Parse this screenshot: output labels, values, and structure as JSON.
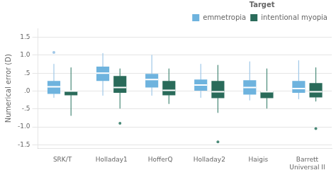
{
  "chart_data": {
    "type": "box",
    "categories": [
      "SRK/T",
      "Holladay1",
      "HofferQ",
      "Holladay2",
      "Haigis",
      "Barrett\nUniversal II"
    ],
    "y_label": "Numerical error (D)",
    "ylim": [
      -1.6,
      1.75
    ],
    "yticks": [
      -1.5,
      {
        "value": -1.0,
        "label": "-1.0"
      },
      {
        "value": -0.5,
        "label": "-.5"
      },
      {
        "value": 0.0,
        "label": ".0"
      },
      {
        "value": 0.5,
        "label": ".5"
      },
      {
        "value": 1.0,
        "label": "1.0"
      },
      1.5
    ],
    "grid": true,
    "legend": "upper right",
    "legend_title": "Target",
    "series": [
      {
        "name": "emmetropia",
        "color": "#6eb3de",
        "whisker_color": "#a0c8e8",
        "whisker_low": [
          -0.18,
          -0.12,
          -0.12,
          -0.18,
          -0.25,
          -0.22
        ],
        "whisker_high": [
          0.75,
          1.05,
          1.0,
          0.75,
          0.82,
          0.85
        ],
        "q1": [
          -0.08,
          0.28,
          0.1,
          0.0,
          -0.1,
          -0.05
        ],
        "median": [
          0.12,
          0.5,
          0.32,
          0.17,
          0.1,
          0.07
        ],
        "q3": [
          0.28,
          0.68,
          0.48,
          0.32,
          0.3,
          0.28
        ],
        "fliers_high": [
          1.08,
          null,
          null,
          null,
          null,
          null
        ],
        "fliers_low": [
          null,
          null,
          null,
          null,
          null,
          null
        ]
      },
      {
        "name": "intentional myopia",
        "color": "#2a6b5a",
        "whisker_color": "#4a8a78",
        "whisker_low": [
          -0.68,
          -0.48,
          -0.35,
          -0.6,
          -0.48,
          -0.28
        ],
        "whisker_high": [
          0.65,
          0.62,
          0.62,
          0.72,
          0.62,
          0.65
        ],
        "q1": [
          -0.12,
          -0.05,
          -0.12,
          -0.2,
          -0.2,
          -0.18
        ],
        "median": [
          0.0,
          0.1,
          0.02,
          -0.02,
          -0.02,
          -0.02
        ],
        "q3": [
          0.0,
          0.42,
          0.28,
          0.28,
          0.0,
          0.22
        ],
        "fliers_high": [
          null,
          null,
          null,
          null,
          null,
          null
        ],
        "fliers_low": [
          null,
          -0.9,
          null,
          -1.42,
          null,
          -1.05
        ]
      }
    ]
  }
}
